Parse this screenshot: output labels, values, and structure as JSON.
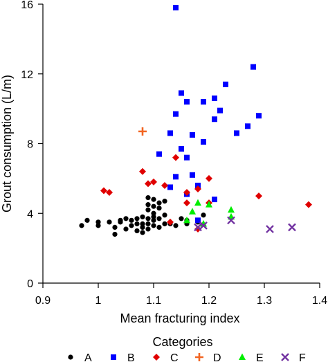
{
  "chart_data": {
    "type": "scatter",
    "xlabel": "Mean fracturing index",
    "ylabel": "Grout consumption (L/m)",
    "xlim": [
      0.9,
      1.4
    ],
    "ylim": [
      0,
      16
    ],
    "xticks": [
      0.9,
      1.0,
      1.1,
      1.2,
      1.3,
      1.4
    ],
    "xtick_labels": [
      "0.9",
      "1",
      "1.1",
      "1.2",
      "1.3",
      "1.4"
    ],
    "yticks": [
      0,
      4,
      8,
      12,
      16
    ],
    "ytick_labels": [
      "0",
      "4",
      "8",
      "12",
      "16"
    ],
    "grid": false,
    "legend": {
      "title": "Categories",
      "position": "bottom"
    },
    "series": [
      {
        "name": "A",
        "marker": "circle",
        "color": "#000000",
        "points": [
          [
            0.97,
            3.3
          ],
          [
            0.98,
            3.6
          ],
          [
            1.0,
            3.5
          ],
          [
            1.0,
            3.3
          ],
          [
            1.02,
            3.5
          ],
          [
            1.03,
            3.2
          ],
          [
            1.03,
            2.8
          ],
          [
            1.04,
            3.5
          ],
          [
            1.04,
            3.6
          ],
          [
            1.05,
            3.1
          ],
          [
            1.05,
            3.7
          ],
          [
            1.06,
            3.3
          ],
          [
            1.06,
            3.6
          ],
          [
            1.07,
            3.4
          ],
          [
            1.07,
            3.0
          ],
          [
            1.07,
            3.7
          ],
          [
            1.08,
            3.2
          ],
          [
            1.08,
            3.4
          ],
          [
            1.08,
            2.9
          ],
          [
            1.08,
            3.8
          ],
          [
            1.09,
            3.4
          ],
          [
            1.09,
            3.1
          ],
          [
            1.09,
            3.7
          ],
          [
            1.09,
            4.2
          ],
          [
            1.09,
            4.5
          ],
          [
            1.09,
            4.9
          ],
          [
            1.1,
            3.3
          ],
          [
            1.1,
            3.6
          ],
          [
            1.1,
            4.0
          ],
          [
            1.1,
            4.4
          ],
          [
            1.1,
            4.8
          ],
          [
            1.1,
            3.8
          ],
          [
            1.11,
            3.2
          ],
          [
            1.11,
            3.7
          ],
          [
            1.11,
            4.3
          ],
          [
            1.11,
            4.6
          ],
          [
            1.12,
            3.4
          ],
          [
            1.12,
            3.9
          ],
          [
            1.12,
            4.7
          ],
          [
            1.13,
            3.4
          ],
          [
            1.14,
            3.3
          ],
          [
            1.15,
            3.7
          ],
          [
            1.16,
            3.4
          ],
          [
            1.16,
            3.6
          ],
          [
            1.18,
            3.5
          ],
          [
            1.19,
            3.9
          ]
        ]
      },
      {
        "name": "B",
        "marker": "square",
        "color": "#0000ff",
        "points": [
          [
            1.14,
            15.8
          ],
          [
            1.11,
            7.4
          ],
          [
            1.13,
            8.6
          ],
          [
            1.13,
            5.5
          ],
          [
            1.14,
            9.7
          ],
          [
            1.14,
            6.1
          ],
          [
            1.15,
            7.7
          ],
          [
            1.15,
            10.9
          ],
          [
            1.16,
            10.4
          ],
          [
            1.16,
            7.2
          ],
          [
            1.16,
            5.1
          ],
          [
            1.17,
            8.5
          ],
          [
            1.17,
            6.2
          ],
          [
            1.18,
            5.6
          ],
          [
            1.18,
            3.6
          ],
          [
            1.19,
            10.4
          ],
          [
            1.19,
            8.1
          ],
          [
            1.21,
            10.6
          ],
          [
            1.21,
            9.4
          ],
          [
            1.21,
            4.8
          ],
          [
            1.22,
            9.9
          ],
          [
            1.23,
            11.4
          ],
          [
            1.25,
            8.6
          ],
          [
            1.27,
            9.0
          ],
          [
            1.28,
            12.4
          ],
          [
            1.29,
            9.6
          ]
        ]
      },
      {
        "name": "C",
        "marker": "diamond",
        "color": "#e00000",
        "points": [
          [
            1.01,
            5.3
          ],
          [
            1.02,
            5.2
          ],
          [
            1.08,
            6.4
          ],
          [
            1.09,
            5.7
          ],
          [
            1.1,
            5.8
          ],
          [
            1.12,
            5.6
          ],
          [
            1.14,
            7.2
          ],
          [
            1.16,
            4.6
          ],
          [
            1.16,
            5.2
          ],
          [
            1.18,
            5.4
          ],
          [
            1.2,
            6.0
          ],
          [
            1.2,
            4.6
          ],
          [
            1.13,
            3.5
          ],
          [
            1.18,
            3.1
          ],
          [
            1.29,
            5.0
          ],
          [
            1.38,
            4.5
          ]
        ]
      },
      {
        "name": "D",
        "marker": "plus",
        "color": "#f26522",
        "points": [
          [
            1.08,
            8.7
          ]
        ]
      },
      {
        "name": "E",
        "marker": "triangle",
        "color": "#00ee00",
        "points": [
          [
            1.16,
            3.6
          ],
          [
            1.17,
            4.1
          ],
          [
            1.18,
            4.6
          ],
          [
            1.19,
            3.4
          ],
          [
            1.2,
            4.5
          ],
          [
            1.24,
            4.2
          ],
          [
            1.24,
            3.8
          ]
        ]
      },
      {
        "name": "F",
        "marker": "x",
        "color": "#7030a0",
        "points": [
          [
            1.18,
            3.2
          ],
          [
            1.19,
            3.3
          ],
          [
            1.24,
            3.6
          ],
          [
            1.31,
            3.1
          ],
          [
            1.35,
            3.2
          ]
        ]
      }
    ]
  }
}
